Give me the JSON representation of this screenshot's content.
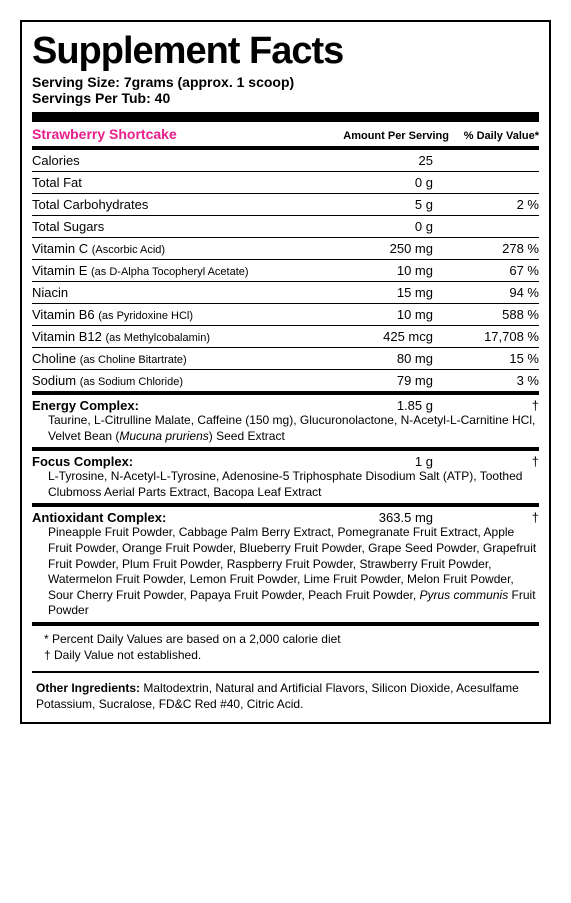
{
  "title": "Supplement Facts",
  "serving_size_label": "Serving Size:",
  "serving_size_value": "7grams (approx. 1 scoop)",
  "servings_per_label": "Servings Per Tub:",
  "servings_per_value": "40",
  "flavor": "Strawberry Shortcake",
  "headers": {
    "amount": "Amount Per Serving",
    "dv": "% Daily Value*"
  },
  "nutrients": [
    {
      "name": "Calories",
      "sub": "",
      "amount": "25",
      "dv": ""
    },
    {
      "name": "Total Fat",
      "sub": "",
      "amount": "0 g",
      "dv": ""
    },
    {
      "name": "Total Carbohydrates",
      "sub": "",
      "amount": "5 g",
      "dv": "2 %"
    },
    {
      "name": "Total Sugars",
      "sub": "",
      "amount": "0 g",
      "dv": ""
    },
    {
      "name": "Vitamin C",
      "sub": "(Ascorbic Acid)",
      "amount": "250 mg",
      "dv": "278 %"
    },
    {
      "name": "Vitamin E",
      "sub": "(as D-Alpha Tocopheryl Acetate)",
      "amount": "10 mg",
      "dv": "67 %"
    },
    {
      "name": "Niacin",
      "sub": "",
      "amount": "15 mg",
      "dv": "94 %"
    },
    {
      "name": "Vitamin B6",
      "sub": "(as Pyridoxine HCl)",
      "amount": "10 mg",
      "dv": "588 %"
    },
    {
      "name": "Vitamin B12",
      "sub": "(as Methylcobalamin)",
      "amount": "425 mcg",
      "dv": "17,708 %"
    },
    {
      "name": "Choline",
      "sub": "(as Choline Bitartrate)",
      "amount": "80 mg",
      "dv": "15 %"
    },
    {
      "name": "Sodium",
      "sub": "(as Sodium Chloride)",
      "amount": "79 mg",
      "dv": "3 %"
    }
  ],
  "complexes": [
    {
      "name": "Energy Complex:",
      "amount": "1.85 g",
      "dv": "†",
      "desc_plain": "Taurine, L-Citrulline Malate, Caffeine (150 mg), Glucuronolactone, N-Acetyl-L-Carnitine HCl, Velvet Bean (",
      "desc_italic": "Mucuna pruriens",
      "desc_after": ") Seed Extract"
    },
    {
      "name": "Focus Complex:",
      "amount": "1 g",
      "dv": "†",
      "desc_plain": "L-Tyrosine, N-Acetyl-L-Tyrosine, Adenosine-5 Triphosphate Disodium Salt (ATP), Toothed Clubmoss Aerial Parts Extract, Bacopa Leaf Extract",
      "desc_italic": "",
      "desc_after": ""
    },
    {
      "name": "Antioxidant Complex:",
      "amount": "363.5 mg",
      "dv": "†",
      "desc_plain": "Pineapple Fruit Powder, Cabbage Palm Berry Extract, Pomegranate Fruit Extract, Apple Fruit Powder, Orange Fruit Powder, Blueberry Fruit Powder, Grape Seed Powder, Grapefruit Fruit Powder, Plum Fruit Powder, Raspberry Fruit Powder, Strawberry Fruit Powder, Watermelon Fruit Powder, Lemon Fruit Powder, Lime Fruit Powder, Melon Fruit Powder, Sour Cherry Fruit Powder, Papaya Fruit Powder, Peach Fruit Powder, ",
      "desc_italic": "Pyrus communis",
      "desc_after": " Fruit Powder"
    }
  ],
  "footnote1": "* Percent Daily Values are based on a 2,000 calorie diet",
  "footnote2": "† Daily Value not established.",
  "other_label": "Other Ingredients:",
  "other_text": "Maltodextrin, Natural and Artificial Flavors, Silicon Dioxide, Acesulfame Potassium, Sucralose, FD&C Red #40, Citric Acid.",
  "colors": {
    "flavor": "#e91e8c",
    "text": "#000000",
    "background": "#ffffff"
  }
}
